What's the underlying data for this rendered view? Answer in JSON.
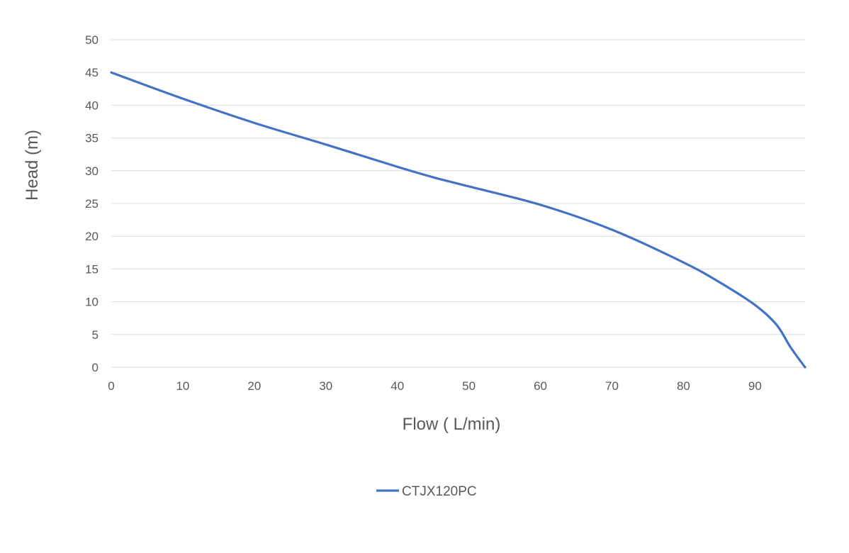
{
  "chart_data": {
    "type": "line",
    "xlabel": "Flow ( L/min)",
    "ylabel": "Head (m)",
    "xlim": [
      0,
      97
    ],
    "ylim": [
      0,
      50
    ],
    "x_ticks": [
      0,
      10,
      20,
      30,
      40,
      50,
      60,
      70,
      80,
      90
    ],
    "y_ticks": [
      0,
      5,
      10,
      15,
      20,
      25,
      30,
      35,
      40,
      45,
      50
    ],
    "grid": "horizontal",
    "legend_position": "bottom",
    "colors": {
      "series": "#4472c4",
      "grid": "#d9d9d9",
      "text": "#595959"
    },
    "series": [
      {
        "name": "CTJX120PC",
        "x": [
          0,
          10,
          20,
          30,
          40,
          45,
          50,
          60,
          70,
          80,
          85,
          90,
          93,
          95,
          97
        ],
        "y": [
          45,
          41,
          37.3,
          34,
          30.6,
          29,
          27.6,
          24.8,
          21,
          16,
          13,
          9.5,
          6.5,
          3,
          0
        ]
      }
    ]
  }
}
